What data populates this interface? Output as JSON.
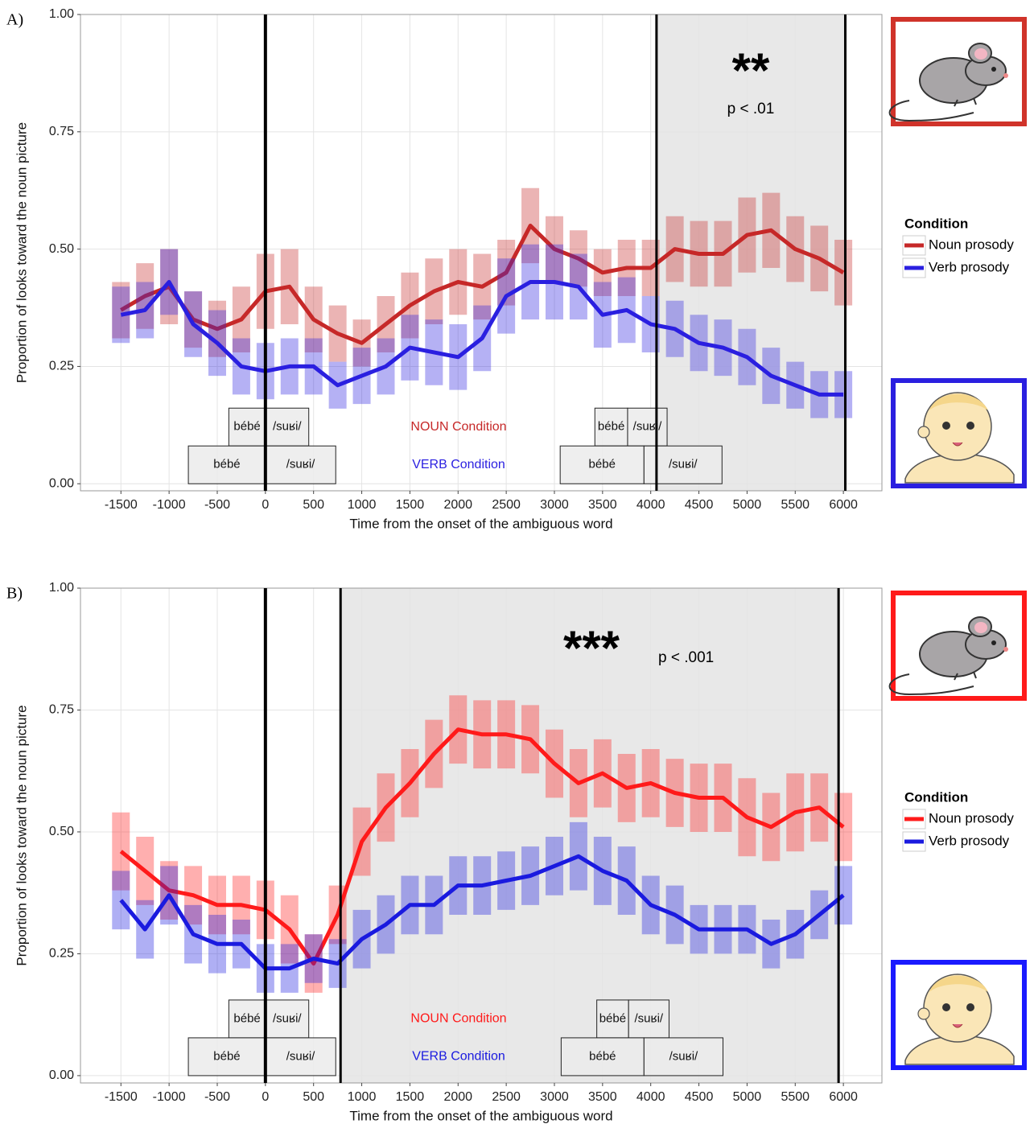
{
  "chart_data": [
    {
      "type": "line",
      "panel_label": "A)",
      "y_label": "Proportion of looks toward the noun picture",
      "x_label": "Time from the onset of the ambiguous word",
      "xlim": [
        -1920,
        6400
      ],
      "ylim": [
        -0.015,
        1.0
      ],
      "xticks": [
        -1500,
        -1000,
        -500,
        0,
        500,
        1000,
        1500,
        2000,
        2500,
        3000,
        3500,
        4000,
        4500,
        5000,
        5500,
        6000
      ],
      "yticks": [
        {
          "value": 0,
          "label": "0.00"
        },
        {
          "value": 0.25,
          "label": "0.25"
        },
        {
          "value": 0.5,
          "label": "0.50"
        },
        {
          "value": 0.75,
          "label": "0.75"
        },
        {
          "value": 1,
          "label": "1.00"
        }
      ],
      "grid": true,
      "x": [
        -1500,
        -1250,
        -1000,
        -750,
        -500,
        -250,
        0,
        250,
        500,
        750,
        1000,
        1250,
        1500,
        1750,
        2000,
        2250,
        2500,
        2750,
        3000,
        3250,
        3500,
        3750,
        4000,
        4250,
        4500,
        4750,
        5000,
        5250,
        5500,
        5750,
        6000
      ],
      "legend_title": "Condition",
      "series": [
        {
          "name": "Noun prosody",
          "color": "#c62828",
          "values": [
            0.37,
            0.4,
            0.42,
            0.35,
            0.33,
            0.35,
            0.41,
            0.42,
            0.35,
            0.32,
            0.3,
            0.34,
            0.38,
            0.41,
            0.43,
            0.42,
            0.45,
            0.55,
            0.5,
            0.48,
            0.45,
            0.46,
            0.46,
            0.5,
            0.49,
            0.49,
            0.53,
            0.54,
            0.5,
            0.48,
            0.45
          ],
          "errors": [
            0.06,
            0.07,
            0.08,
            0.06,
            0.06,
            0.07,
            0.08,
            0.08,
            0.07,
            0.06,
            0.05,
            0.06,
            0.07,
            0.07,
            0.07,
            0.07,
            0.07,
            0.08,
            0.07,
            0.06,
            0.05,
            0.06,
            0.06,
            0.07,
            0.07,
            0.07,
            0.08,
            0.08,
            0.07,
            0.07,
            0.07
          ]
        },
        {
          "name": "Verb prosody",
          "color": "#2a1fe0",
          "values": [
            0.36,
            0.37,
            0.43,
            0.34,
            0.3,
            0.25,
            0.24,
            0.25,
            0.25,
            0.21,
            0.23,
            0.25,
            0.29,
            0.28,
            0.27,
            0.31,
            0.4,
            0.43,
            0.43,
            0.42,
            0.36,
            0.37,
            0.34,
            0.33,
            0.3,
            0.29,
            0.27,
            0.23,
            0.21,
            0.19,
            0.19
          ],
          "errors": [
            0.06,
            0.06,
            0.07,
            0.07,
            0.07,
            0.06,
            0.06,
            0.06,
            0.06,
            0.05,
            0.06,
            0.06,
            0.07,
            0.07,
            0.07,
            0.07,
            0.08,
            0.08,
            0.08,
            0.07,
            0.07,
            0.07,
            0.06,
            0.06,
            0.06,
            0.06,
            0.06,
            0.06,
            0.05,
            0.05,
            0.05
          ]
        }
      ],
      "vlines": [
        0,
        4060,
        6020
      ],
      "highlight": [
        4060,
        6020
      ],
      "significance": "**",
      "p_label": "p < .01",
      "word_rows": [
        {
          "condition": "NOUN Condition",
          "color": "#c62828",
          "words": [
            {
              "label": "bébé",
              "start": -380,
              "end": 0
            },
            {
              "label": "/suʁi/",
              "start": 0,
              "end": 450
            },
            {
              "label": "bébé",
              "start": 3420,
              "end": 3760
            },
            {
              "label": "/suʁi/",
              "start": 3760,
              "end": 4170
            }
          ]
        },
        {
          "condition": "VERB Condition",
          "color": "#2a1fe0",
          "words": [
            {
              "label": "bébé",
              "start": -800,
              "end": 0
            },
            {
              "label": "/suʁi/",
              "start": 0,
              "end": 730
            },
            {
              "label": "bébé",
              "start": 3060,
              "end": 3930
            },
            {
              "label": "/suʁi/",
              "start": 3930,
              "end": 4740
            }
          ]
        }
      ]
    },
    {
      "type": "line",
      "panel_label": "B)",
      "y_label": "Proportion of looks toward the noun picture",
      "x_label": "Time from the onset of the ambiguous word",
      "xlim": [
        -1920,
        6400
      ],
      "ylim": [
        -0.015,
        1.0
      ],
      "xticks": [
        -1500,
        -1000,
        -500,
        0,
        500,
        1000,
        1500,
        2000,
        2500,
        3000,
        3500,
        4000,
        4500,
        5000,
        5500,
        6000
      ],
      "yticks": [
        {
          "value": 0,
          "label": "0.00"
        },
        {
          "value": 0.25,
          "label": "0.25"
        },
        {
          "value": 0.5,
          "label": "0.50"
        },
        {
          "value": 0.75,
          "label": "0.75"
        },
        {
          "value": 1,
          "label": "1.00"
        }
      ],
      "grid": true,
      "x": [
        -1500,
        -1250,
        -1000,
        -750,
        -500,
        -250,
        0,
        250,
        500,
        750,
        1000,
        1250,
        1500,
        1750,
        2000,
        2250,
        2500,
        2750,
        3000,
        3250,
        3500,
        3750,
        4000,
        4250,
        4500,
        4750,
        5000,
        5250,
        5500,
        5750,
        6000
      ],
      "legend_title": "Condition",
      "series": [
        {
          "name": "Noun prosody",
          "color": "#ff1a1a",
          "values": [
            0.46,
            0.42,
            0.38,
            0.37,
            0.35,
            0.35,
            0.34,
            0.3,
            0.23,
            0.33,
            0.48,
            0.55,
            0.6,
            0.66,
            0.71,
            0.7,
            0.7,
            0.69,
            0.64,
            0.6,
            0.62,
            0.59,
            0.6,
            0.58,
            0.57,
            0.57,
            0.53,
            0.51,
            0.54,
            0.55,
            0.51
          ],
          "errors": [
            0.08,
            0.07,
            0.06,
            0.06,
            0.06,
            0.06,
            0.06,
            0.07,
            0.06,
            0.06,
            0.07,
            0.07,
            0.07,
            0.07,
            0.07,
            0.07,
            0.07,
            0.07,
            0.07,
            0.07,
            0.07,
            0.07,
            0.07,
            0.07,
            0.07,
            0.07,
            0.08,
            0.07,
            0.08,
            0.07,
            0.07
          ]
        },
        {
          "name": "Verb prosody",
          "color": "#1a1adf",
          "values": [
            0.36,
            0.3,
            0.37,
            0.29,
            0.27,
            0.27,
            0.22,
            0.22,
            0.24,
            0.23,
            0.28,
            0.31,
            0.35,
            0.35,
            0.39,
            0.39,
            0.4,
            0.41,
            0.43,
            0.45,
            0.42,
            0.4,
            0.35,
            0.33,
            0.3,
            0.3,
            0.3,
            0.27,
            0.29,
            0.33,
            0.37
          ],
          "errors": [
            0.06,
            0.06,
            0.06,
            0.06,
            0.06,
            0.05,
            0.05,
            0.05,
            0.05,
            0.05,
            0.06,
            0.06,
            0.06,
            0.06,
            0.06,
            0.06,
            0.06,
            0.06,
            0.06,
            0.07,
            0.07,
            0.07,
            0.06,
            0.06,
            0.05,
            0.05,
            0.05,
            0.05,
            0.05,
            0.05,
            0.06
          ]
        }
      ],
      "vlines": [
        0,
        780,
        5950
      ],
      "highlight": [
        780,
        5950
      ],
      "significance": "***",
      "p_label": "p < .001",
      "word_rows": [
        {
          "condition": "NOUN Condition",
          "color": "#ff1a1a",
          "words": [
            {
              "label": "bébé",
              "start": -380,
              "end": 0
            },
            {
              "label": "/suʁi/",
              "start": 0,
              "end": 450
            },
            {
              "label": "bébé",
              "start": 3440,
              "end": 3770
            },
            {
              "label": "/suʁi/",
              "start": 3770,
              "end": 4190
            }
          ]
        },
        {
          "condition": "VERB Condition",
          "color": "#1a1adf",
          "words": [
            {
              "label": "bébé",
              "start": -800,
              "end": 0
            },
            {
              "label": "/suʁi/",
              "start": 0,
              "end": 730
            },
            {
              "label": "bébé",
              "start": 3070,
              "end": 3930
            },
            {
              "label": "/suʁi/",
              "start": 3930,
              "end": 4750
            }
          ]
        }
      ]
    }
  ]
}
